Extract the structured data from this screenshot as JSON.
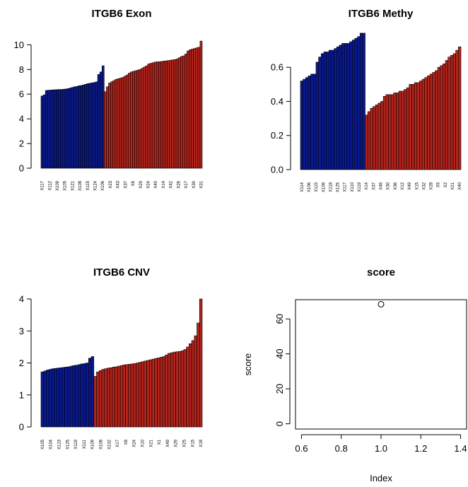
{
  "colors": {
    "group1": "#0a1a8c",
    "group2": "#b4241c",
    "axis": "#000000",
    "background": "#ffffff"
  },
  "chart_data": [
    {
      "type": "bar",
      "title": "ITGB6 Exon",
      "xlabel": "",
      "ylabel": "",
      "ylim": [
        0,
        10.25
      ],
      "yticks": [
        0,
        2,
        4,
        6,
        8,
        10
      ],
      "group_colors": [
        "group1",
        "group2"
      ],
      "xtick_labels": [
        "X117",
        "X112",
        "X109",
        "X105",
        "X121",
        "X108",
        "X115",
        "X124",
        "X106",
        "X23",
        "X43",
        "X37",
        "X6",
        "X29",
        "X24",
        "X40",
        "X14",
        "X42",
        "X26",
        "X17",
        "X30",
        "X31"
      ],
      "series": [
        {
          "color": "group1",
          "values": [
            5.85,
            5.95,
            6.3,
            6.32,
            6.33,
            6.35,
            6.36,
            6.37,
            6.38,
            6.38,
            6.4,
            6.42,
            6.45,
            6.5,
            6.55,
            6.6,
            6.62,
            6.68,
            6.7,
            6.75,
            6.8,
            6.85,
            6.88,
            6.92,
            6.95,
            7.0,
            7.6,
            7.8,
            8.3
          ]
        },
        {
          "color": "group2",
          "values": [
            6.2,
            6.6,
            6.9,
            7.0,
            7.1,
            7.2,
            7.25,
            7.3,
            7.35,
            7.45,
            7.55,
            7.7,
            7.8,
            7.85,
            7.9,
            7.95,
            8.0,
            8.1,
            8.2,
            8.3,
            8.45,
            8.5,
            8.55,
            8.6,
            8.62,
            8.63,
            8.65,
            8.68,
            8.7,
            8.72,
            8.75,
            8.78,
            8.8,
            8.85,
            8.95,
            9.05,
            9.1,
            9.25,
            9.5,
            9.6,
            9.65,
            9.7,
            9.75,
            9.8,
            10.3
          ]
        }
      ]
    },
    {
      "type": "bar",
      "title": "ITGB6 Methy",
      "xlabel": "",
      "ylabel": "",
      "ylim": [
        0,
        0.75
      ],
      "yticks": [
        "0.0",
        "0.2",
        "0.4",
        "0.6"
      ],
      "group_colors": [
        "group1",
        "group2"
      ],
      "xtick_labels": [
        "X114",
        "X106",
        "X115",
        "X109",
        "X118",
        "X125",
        "X117",
        "X110",
        "X119",
        "X14",
        "X37",
        "X46",
        "X30",
        "X36",
        "X12",
        "X49",
        "X15",
        "X32",
        "X28",
        "X5",
        "X2",
        "X21",
        "X40"
      ],
      "series": [
        {
          "color": "group1",
          "values": [
            0.52,
            0.53,
            0.54,
            0.55,
            0.56,
            0.56,
            0.63,
            0.66,
            0.68,
            0.69,
            0.69,
            0.7,
            0.7,
            0.71,
            0.72,
            0.73,
            0.74,
            0.74,
            0.74,
            0.75,
            0.76,
            0.77,
            0.78,
            0.8,
            0.8
          ]
        },
        {
          "color": "group2",
          "values": [
            0.32,
            0.34,
            0.36,
            0.37,
            0.38,
            0.39,
            0.4,
            0.43,
            0.44,
            0.44,
            0.44,
            0.45,
            0.45,
            0.46,
            0.46,
            0.47,
            0.48,
            0.5,
            0.5,
            0.51,
            0.51,
            0.52,
            0.53,
            0.54,
            0.55,
            0.56,
            0.57,
            0.58,
            0.6,
            0.61,
            0.62,
            0.64,
            0.66,
            0.67,
            0.68,
            0.7,
            0.72
          ]
        }
      ]
    },
    {
      "type": "bar",
      "title": "ITGB6 CNV",
      "xlabel": "",
      "ylabel": "",
      "ylim": [
        0,
        4.0
      ],
      "yticks": [
        0,
        1,
        2,
        3,
        4
      ],
      "group_colors": [
        "group1",
        "group2"
      ],
      "xtick_labels": [
        "X105",
        "X104",
        "X123",
        "X125",
        "X119",
        "X111",
        "X109",
        "X108",
        "X102",
        "X17",
        "X8",
        "X24",
        "X10",
        "X21",
        "X1",
        "X49",
        "X29",
        "X25",
        "X15",
        "X18"
      ],
      "series": [
        {
          "color": "group1",
          "values": [
            1.72,
            1.75,
            1.78,
            1.8,
            1.82,
            1.83,
            1.84,
            1.85,
            1.86,
            1.87,
            1.88,
            1.9,
            1.92,
            1.93,
            1.95,
            1.97,
            1.98,
            2.0,
            2.15,
            2.2
          ]
        },
        {
          "color": "group2",
          "values": [
            1.58,
            1.72,
            1.76,
            1.8,
            1.82,
            1.84,
            1.85,
            1.87,
            1.88,
            1.9,
            1.92,
            1.94,
            1.95,
            1.96,
            1.97,
            1.98,
            2.0,
            2.02,
            2.04,
            2.06,
            2.08,
            2.1,
            2.12,
            2.14,
            2.16,
            2.18,
            2.2,
            2.25,
            2.3,
            2.32,
            2.34,
            2.35,
            2.36,
            2.38,
            2.42,
            2.5,
            2.6,
            2.7,
            2.85,
            3.25,
            4.0
          ]
        }
      ]
    },
    {
      "type": "scatter",
      "title": "score",
      "xlabel": "Index",
      "ylabel": "score",
      "xlim": [
        0.57,
        1.43
      ],
      "ylim": [
        -3,
        71
      ],
      "xticks": [
        "0.6",
        "0.8",
        "1.0",
        "1.2",
        "1.4"
      ],
      "yticks": [
        0,
        20,
        40,
        60
      ],
      "series": [
        {
          "x": [
            1.0
          ],
          "y": [
            68.4
          ]
        }
      ]
    }
  ]
}
